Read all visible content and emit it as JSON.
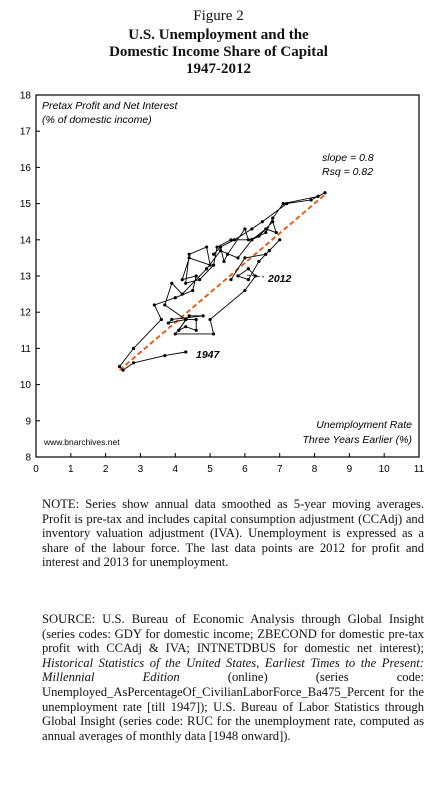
{
  "figure": {
    "label": "Figure 2",
    "title_lines": [
      "U.S. Unemployment and the",
      "Domestic Income Share of Capital",
      "1947-2012"
    ]
  },
  "chart_data": {
    "type": "line",
    "ylabel_lines": [
      "Pretax Profit and Net Interest",
      "(% of domestic income)"
    ],
    "xlabel_lines": [
      "Unemployment Rate",
      "Three Years Earlier (%)"
    ],
    "xlim": [
      0,
      11
    ],
    "ylim": [
      8,
      18
    ],
    "xticks": [
      0,
      1,
      2,
      3,
      4,
      5,
      6,
      7,
      8,
      9,
      10,
      11
    ],
    "yticks": [
      8,
      9,
      10,
      11,
      12,
      13,
      14,
      15,
      16,
      17,
      18
    ],
    "grid": false,
    "stats_lines": [
      "slope = 0.8",
      "Rsq = 0.82"
    ],
    "annotations": [
      {
        "text": "1947",
        "x": 4.5,
        "y": 10.8
      },
      {
        "text": "2012",
        "x": 6.7,
        "y": 12.9
      }
    ],
    "watermark": "www.bnarchives.net",
    "series": [
      {
        "type": "line",
        "color": "#000000",
        "x": [
          4.3,
          3.7,
          2.8,
          2.5,
          2.4,
          2.8,
          3.6,
          3.4,
          4.0,
          4.5,
          4.6,
          4.2,
          4.4,
          5.0,
          4.9,
          4.4,
          4.3,
          4.7,
          5.1,
          5.2,
          5.6,
          6.2,
          6.6,
          6.8,
          7.1,
          8.1,
          8.3,
          7.9,
          7.2,
          6.5,
          6.2,
          5.7,
          5.3,
          5.1,
          5.3,
          5.4,
          5.5,
          6.0,
          6.1,
          6.4,
          6.8,
          6.9,
          6.6,
          6.2,
          5.8,
          5.3,
          4.9,
          4.2,
          3.9,
          3.7,
          4.3,
          4.6,
          4.6,
          4.3,
          4.1,
          4.3,
          3.8,
          3.9,
          4.8,
          4.4,
          4.0,
          5.1,
          5.0,
          6.0,
          6.3,
          6.1,
          5.8,
          6.1,
          6.4,
          6.7,
          7.0,
          6.6,
          6.0,
          5.6
        ],
        "y": [
          10.9,
          10.8,
          10.6,
          10.4,
          10.5,
          11.0,
          11.8,
          12.2,
          12.4,
          12.6,
          13.0,
          12.9,
          13.5,
          13.3,
          13.8,
          13.6,
          12.8,
          12.9,
          13.3,
          13.8,
          14.0,
          14.0,
          14.2,
          14.6,
          15.0,
          15.2,
          15.3,
          15.1,
          15.0,
          14.5,
          14.3,
          14.0,
          13.8,
          13.6,
          13.8,
          13.4,
          13.6,
          14.3,
          14.0,
          14.1,
          14.5,
          14.2,
          14.3,
          14.0,
          13.5,
          13.7,
          13.2,
          12.5,
          12.8,
          12.2,
          11.8,
          11.8,
          11.5,
          11.6,
          11.5,
          11.8,
          11.7,
          11.8,
          11.9,
          11.9,
          11.4,
          11.4,
          11.8,
          12.6,
          13.0,
          13.2,
          13.0,
          12.9,
          13.4,
          13.7,
          14.0,
          13.6,
          13.5,
          12.9
        ]
      },
      {
        "type": "line",
        "name": "trend",
        "color": "#e8601c",
        "style": "dashed",
        "x": [
          2.4,
          8.3
        ],
        "y": [
          10.4,
          15.25
        ]
      }
    ]
  },
  "note": "NOTE: Series show annual data smoothed as 5-year moving averages. Profit is pre-tax and includes capital consumption adjustment (CCAdj) and inventory valuation adjustment (IVA). Unemployment is expressed as a share of the labour force. The last data points are 2012 for profit and interest and 2013 for unemployment.",
  "source": {
    "part1": "SOURCE: U.S. Bureau of Economic Analysis through Global Insight (series codes: GDY for domestic income; ZBECOND for domestic pre-tax profit with CCAdj & IVA; INTNETDBUS for domestic net interest); ",
    "italic": "Historical Statistics of the United States, Earliest Times to the Present: Millennial Edition",
    "part2": " (online) (series code: Unemployed_AsPercentageOf_CivilianLaborForce_Ba475_Percent for the unemployment rate [till 1947]); U.S. Bureau of Labor Statistics through Global Insight (series code: RUC for the unemployment rate, computed as annual averages of monthly data [1948 onward])."
  }
}
